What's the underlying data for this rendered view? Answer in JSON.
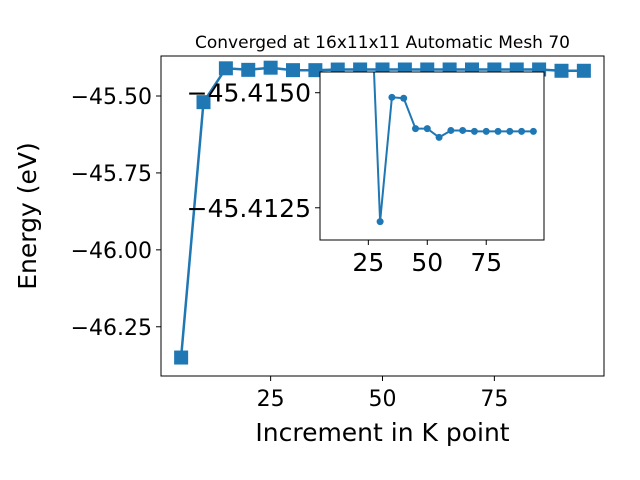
{
  "chart_data": [
    {
      "type": "line",
      "title": "Converged at 16x11x11 Automatic Mesh 70",
      "xlabel": "Increment in K point",
      "ylabel": "Energy (eV)",
      "xlim": [
        0.5,
        99.5
      ],
      "ylim": [
        -46.41,
        -45.37
      ],
      "xticks": [
        25,
        50,
        75
      ],
      "xtick_labels": [
        "25",
        "50",
        "75"
      ],
      "yticks": [
        -46.25,
        -46.0,
        -45.75,
        -45.5
      ],
      "ytick_labels": [
        "−46.25",
        "−46.00",
        "−45.75",
        "−45.50"
      ],
      "marker": "square",
      "color": "#1f77b4",
      "grid": false,
      "series": [
        {
          "x": [
            5,
            10,
            15,
            20,
            25,
            30,
            35,
            40,
            45,
            50,
            55,
            60,
            65,
            70,
            75,
            80,
            85,
            90,
            95
          ],
          "y": [
            -46.35,
            -45.52,
            -45.41,
            -45.415,
            -45.408,
            -45.416,
            -45.416,
            -45.414,
            -45.4138,
            -45.4138,
            -45.4139,
            -45.4138,
            -45.4138,
            -45.4138,
            -45.4138,
            -45.4138,
            -45.4138,
            -45.418,
            -45.418
          ]
        }
      ]
    },
    {
      "type": "line",
      "title": "",
      "inset": true,
      "xlim": [
        4.5,
        99.5
      ],
      "ylim": [
        -45.4118,
        -45.41545
      ],
      "y_inverted": true,
      "xticks": [
        25,
        50,
        75
      ],
      "xtick_labels": [
        "25",
        "50",
        "75"
      ],
      "yticks": [
        -45.415,
        -45.4125
      ],
      "ytick_labels": [
        "−45.4150",
        "−45.4125"
      ],
      "marker": "circle",
      "color": "#1f77b4",
      "series": [
        {
          "x": [
            25,
            30,
            35,
            40,
            45,
            50,
            55,
            60,
            65,
            70,
            75,
            80,
            85,
            90,
            95
          ],
          "y": [
            -45.4185,
            -45.4122,
            -45.4149,
            -45.41488,
            -45.41422,
            -45.41422,
            -45.41403,
            -45.41418,
            -45.41418,
            -45.41416,
            -45.41416,
            -45.41416,
            -45.41416,
            -45.41416,
            -45.41416
          ]
        }
      ]
    }
  ]
}
